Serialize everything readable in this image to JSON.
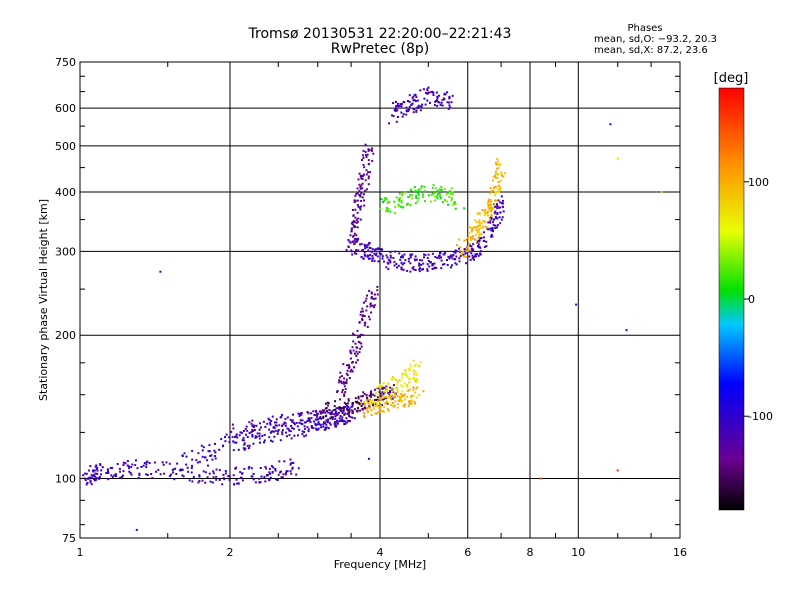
{
  "header": {
    "title": "Tromsø 20130531 22:20:00–22:21:43",
    "subtitle": "RwPretec (8p)"
  },
  "stats": {
    "heading": "Phases",
    "o_line": "mean, sd,O: −93.2, 20.3",
    "x_line": "mean, sd,X:  87.2, 23.6"
  },
  "chart_data": {
    "type": "scatter",
    "xlabel": "Frequency [MHz]",
    "ylabel": "Stationary phase Virtual Height [km]",
    "x_scale": "log",
    "y_scale": "log",
    "xlim": [
      1,
      16
    ],
    "ylim": [
      75,
      750
    ],
    "x_ticks": [
      1,
      2,
      4,
      6,
      8,
      10,
      16
    ],
    "y_ticks": [
      75,
      100,
      200,
      300,
      400,
      500,
      600,
      750
    ],
    "x_grid": [
      2,
      4,
      6,
      8,
      10
    ],
    "y_grid": [
      100,
      200,
      300,
      400,
      500,
      600
    ],
    "colorbar": {
      "label": "[deg]",
      "range": [
        -180,
        180
      ],
      "ticks": [
        100,
        0,
        -100
      ]
    },
    "traces": [
      {
        "x": [
          1.02,
          1.1,
          1.3,
          1.6,
          2.0,
          2.4,
          2.7
        ],
        "y": [
          101,
          103,
          105,
          103,
          101,
          102,
          106
        ],
        "phase": -110
      },
      {
        "x": [
          1.6,
          2.0,
          2.4,
          2.8,
          3.2,
          3.5
        ],
        "y": [
          108,
          118,
          124,
          128,
          133,
          138
        ],
        "phase": -105
      },
      {
        "x": [
          2.0,
          2.4,
          2.8,
          3.2,
          3.5
        ],
        "y": [
          124,
          129,
          132,
          134,
          136
        ],
        "phase": -115
      },
      {
        "x": [
          3.0,
          3.4,
          3.7,
          4.0,
          4.3
        ],
        "y": [
          138,
          142,
          146,
          149,
          153
        ],
        "phase": -150
      },
      {
        "x": [
          3.3,
          3.5,
          3.7,
          3.9
        ],
        "y": [
          150,
          175,
          215,
          250
        ],
        "phase": -135
      },
      {
        "x": [
          3.7,
          4.0,
          4.4,
          4.8
        ],
        "y": [
          140,
          143,
          146,
          150
        ],
        "phase": 95
      },
      {
        "x": [
          4.0,
          4.4,
          4.8
        ],
        "y": [
          150,
          160,
          170
        ],
        "phase": 70
      },
      {
        "x": [
          3.5,
          3.8,
          4.2,
          4.7,
          5.2,
          5.8,
          6.3,
          6.8,
          7.0
        ],
        "y": [
          310,
          298,
          288,
          283,
          286,
          292,
          305,
          340,
          385
        ],
        "phase": -110
      },
      {
        "x": [
          3.5,
          3.6,
          3.7,
          3.8
        ],
        "y": [
          310,
          360,
          420,
          490
        ],
        "phase": -130
      },
      {
        "x": [
          5.8,
          6.2,
          6.5,
          6.8,
          7.0
        ],
        "y": [
          300,
          325,
          360,
          400,
          460
        ],
        "phase": 95
      },
      {
        "x": [
          4.0,
          4.6,
          5.2,
          5.8
        ],
        "y": [
          370,
          390,
          400,
          380
        ],
        "phase": 20
      },
      {
        "x": [
          4.2,
          4.6,
          5.0,
          5.6
        ],
        "y": [
          580,
          610,
          635,
          620
        ],
        "phase": -110
      }
    ],
    "scatter_points": [
      {
        "x": 1.45,
        "y": 272,
        "phase": -110
      },
      {
        "x": 11.6,
        "y": 555,
        "phase": -100
      },
      {
        "x": 12.0,
        "y": 470,
        "phase": 50
      },
      {
        "x": 9.9,
        "y": 232,
        "phase": -120
      },
      {
        "x": 12.5,
        "y": 205,
        "phase": -140
      },
      {
        "x": 12.0,
        "y": 104,
        "phase": 160
      },
      {
        "x": 14.7,
        "y": 400,
        "phase": 90
      },
      {
        "x": 8.4,
        "y": 100,
        "phase": 140
      },
      {
        "x": 3.8,
        "y": 110,
        "phase": -100
      },
      {
        "x": 1.3,
        "y": 78,
        "phase": -100
      }
    ]
  }
}
